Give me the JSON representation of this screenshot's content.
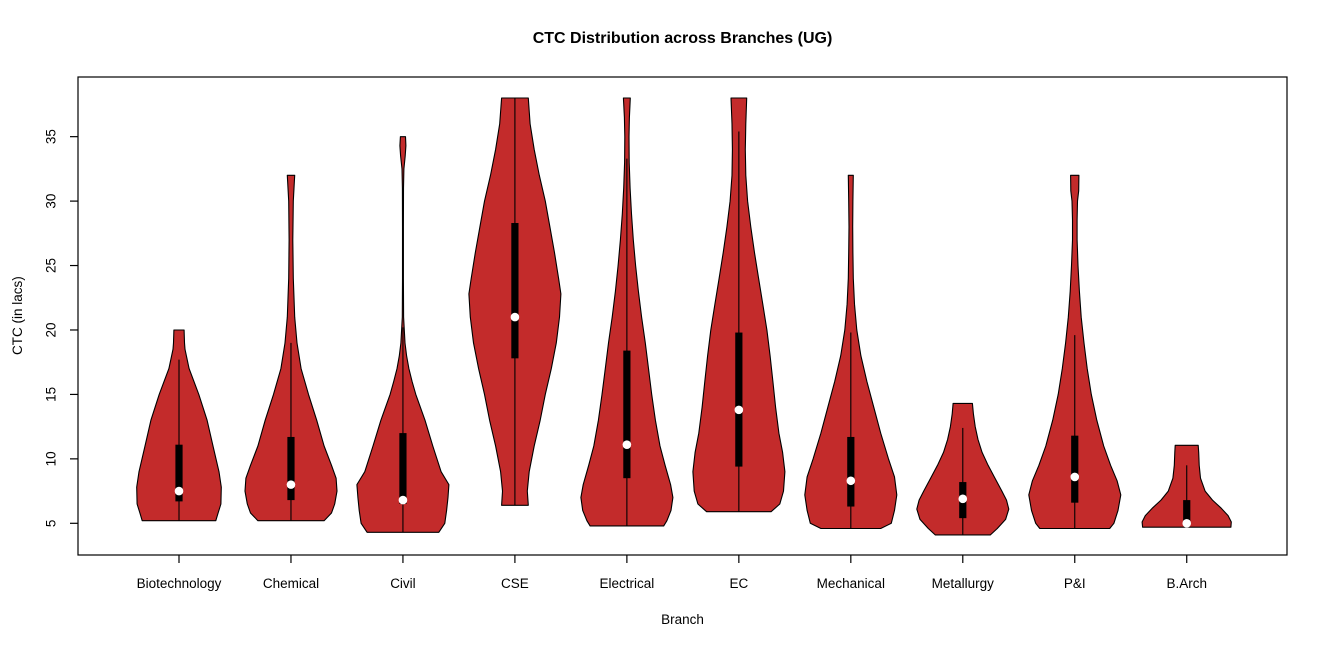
{
  "chart_data": {
    "type": "violin",
    "title": "CTC Distribution across Branches (UG)",
    "xlabel": "Branch",
    "ylabel": "CTC (in lacs)",
    "y_ticks": [
      5,
      10,
      15,
      20,
      25,
      30,
      35
    ],
    "ylim": [
      2.5,
      39.6
    ],
    "grid": false,
    "legend": "none",
    "colors": {
      "violin_fill": "#C32B2B",
      "violin_outline": "#000000",
      "box": "#000000",
      "median_dot": "#FFFFFF",
      "axis": "#000000"
    },
    "categories": [
      "Biotechnology",
      "Chemical",
      "Civil",
      "CSE",
      "Electrical",
      "EC",
      "Mechanical",
      "Metallurgy",
      "P&I",
      "B.Arch"
    ],
    "series": [
      {
        "label": "Biotechnology",
        "min": 5.2,
        "max": 20,
        "q1": 6.7,
        "q3": 11.1,
        "median": 7.5,
        "whisker_low": 5.2,
        "whisker_high": 17.7,
        "profile": [
          [
            20,
            0.11
          ],
          [
            19,
            0.12
          ],
          [
            18.5,
            0.13
          ],
          [
            17,
            0.22
          ],
          [
            15,
            0.43
          ],
          [
            13,
            0.61
          ],
          [
            11,
            0.74
          ],
          [
            9,
            0.87
          ],
          [
            7.8,
            0.92
          ],
          [
            6.5,
            0.91
          ],
          [
            5.8,
            0.85
          ],
          [
            5.2,
            0.8
          ]
        ]
      },
      {
        "label": "Chemical",
        "min": 5.2,
        "max": 32,
        "q1": 6.8,
        "q3": 11.7,
        "median": 8.0,
        "whisker_low": 5.2,
        "whisker_high": 19.0,
        "profile": [
          [
            32,
            0.08
          ],
          [
            30,
            0.05
          ],
          [
            27,
            0.04
          ],
          [
            24,
            0.05
          ],
          [
            21,
            0.08
          ],
          [
            19,
            0.13
          ],
          [
            17,
            0.22
          ],
          [
            15,
            0.38
          ],
          [
            13,
            0.56
          ],
          [
            11,
            0.72
          ],
          [
            9.5,
            0.88
          ],
          [
            8.5,
            0.98
          ],
          [
            7.5,
            1.0
          ],
          [
            6.5,
            0.95
          ],
          [
            5.8,
            0.88
          ],
          [
            5.2,
            0.72
          ]
        ]
      },
      {
        "label": "Civil",
        "min": 4.3,
        "max": 35,
        "q1": 6.5,
        "q3": 12.0,
        "median": 6.8,
        "whisker_low": 4.3,
        "whisker_high": 20.2,
        "profile": [
          [
            35,
            0.055
          ],
          [
            34.3,
            0.065
          ],
          [
            33.5,
            0.05
          ],
          [
            32.5,
            0.02
          ],
          [
            31,
            0.012
          ],
          [
            28,
            0.01
          ],
          [
            24,
            0.01
          ],
          [
            21,
            0.015
          ],
          [
            19,
            0.045
          ],
          [
            18,
            0.08
          ],
          [
            17,
            0.13
          ],
          [
            16,
            0.2
          ],
          [
            15,
            0.28
          ],
          [
            13,
            0.48
          ],
          [
            11,
            0.65
          ],
          [
            9,
            0.83
          ],
          [
            8,
            1.0
          ],
          [
            7,
            0.98
          ],
          [
            6,
            0.95
          ],
          [
            5,
            0.91
          ],
          [
            4.3,
            0.78
          ]
        ]
      },
      {
        "label": "CSE",
        "min": 6.4,
        "max": 38,
        "q1": 17.8,
        "q3": 28.3,
        "median": 21.0,
        "whisker_low": 6.4,
        "whisker_high": 38,
        "profile": [
          [
            38,
            0.29
          ],
          [
            36,
            0.33
          ],
          [
            34,
            0.42
          ],
          [
            32,
            0.53
          ],
          [
            30,
            0.66
          ],
          [
            28,
            0.76
          ],
          [
            26,
            0.86
          ],
          [
            24,
            0.95
          ],
          [
            22.8,
            1.0
          ],
          [
            21,
            0.97
          ],
          [
            19,
            0.9
          ],
          [
            17,
            0.79
          ],
          [
            15,
            0.66
          ],
          [
            13,
            0.55
          ],
          [
            11,
            0.42
          ],
          [
            9,
            0.31
          ],
          [
            7.5,
            0.27
          ],
          [
            6.4,
            0.29
          ]
        ]
      },
      {
        "label": "Electrical",
        "min": 4.8,
        "max": 38,
        "q1": 8.5,
        "q3": 18.4,
        "median": 11.1,
        "whisker_low": 4.8,
        "whisker_high": 33.3,
        "profile": [
          [
            38,
            0.075
          ],
          [
            36.5,
            0.055
          ],
          [
            35,
            0.045
          ],
          [
            33,
            0.05
          ],
          [
            31,
            0.07
          ],
          [
            29,
            0.1
          ],
          [
            27,
            0.14
          ],
          [
            25,
            0.19
          ],
          [
            23,
            0.25
          ],
          [
            21,
            0.32
          ],
          [
            19,
            0.4
          ],
          [
            17,
            0.47
          ],
          [
            15,
            0.54
          ],
          [
            13,
            0.62
          ],
          [
            11,
            0.72
          ],
          [
            9.5,
            0.83
          ],
          [
            8,
            0.95
          ],
          [
            7,
            1.0
          ],
          [
            6,
            0.96
          ],
          [
            5.2,
            0.87
          ],
          [
            4.8,
            0.8
          ]
        ]
      },
      {
        "label": "EC",
        "min": 5.9,
        "max": 38,
        "q1": 9.4,
        "q3": 19.8,
        "median": 13.8,
        "whisker_low": 5.9,
        "whisker_high": 35.4,
        "profile": [
          [
            38,
            0.17
          ],
          [
            36,
            0.15
          ],
          [
            34,
            0.14
          ],
          [
            32,
            0.15
          ],
          [
            30,
            0.19
          ],
          [
            28,
            0.26
          ],
          [
            26,
            0.34
          ],
          [
            24,
            0.43
          ],
          [
            22,
            0.52
          ],
          [
            20,
            0.61
          ],
          [
            18,
            0.68
          ],
          [
            16,
            0.74
          ],
          [
            14,
            0.8
          ],
          [
            12,
            0.87
          ],
          [
            10.5,
            0.95
          ],
          [
            9,
            1.0
          ],
          [
            7.5,
            0.97
          ],
          [
            6.5,
            0.89
          ],
          [
            5.9,
            0.7
          ]
        ]
      },
      {
        "label": "Mechanical",
        "min": 4.6,
        "max": 32,
        "q1": 6.3,
        "q3": 11.7,
        "median": 8.3,
        "whisker_low": 4.6,
        "whisker_high": 19.8,
        "profile": [
          [
            32,
            0.055
          ],
          [
            30,
            0.045
          ],
          [
            28,
            0.04
          ],
          [
            26,
            0.045
          ],
          [
            24,
            0.055
          ],
          [
            22,
            0.08
          ],
          [
            20,
            0.13
          ],
          [
            18,
            0.22
          ],
          [
            16,
            0.35
          ],
          [
            14,
            0.5
          ],
          [
            12,
            0.65
          ],
          [
            10,
            0.82
          ],
          [
            8.6,
            0.95
          ],
          [
            7.2,
            1.0
          ],
          [
            6,
            0.95
          ],
          [
            5,
            0.88
          ],
          [
            4.6,
            0.65
          ]
        ]
      },
      {
        "label": "Metallurgy",
        "min": 4.1,
        "max": 14.3,
        "q1": 5.4,
        "q3": 8.2,
        "median": 6.9,
        "whisker_low": 4.1,
        "whisker_high": 12.4,
        "profile": [
          [
            14.3,
            0.21
          ],
          [
            13.5,
            0.23
          ],
          [
            12.5,
            0.27
          ],
          [
            11.5,
            0.33
          ],
          [
            10.5,
            0.42
          ],
          [
            9.5,
            0.55
          ],
          [
            8.5,
            0.7
          ],
          [
            7.5,
            0.85
          ],
          [
            6.8,
            0.95
          ],
          [
            6.1,
            1.0
          ],
          [
            5.3,
            0.93
          ],
          [
            4.6,
            0.75
          ],
          [
            4.1,
            0.6
          ]
        ]
      },
      {
        "label": "P&I",
        "min": 4.6,
        "max": 32,
        "q1": 6.6,
        "q3": 11.8,
        "median": 8.6,
        "whisker_low": 4.6,
        "whisker_high": 19.6,
        "profile": [
          [
            32,
            0.09
          ],
          [
            30.8,
            0.085
          ],
          [
            30,
            0.06
          ],
          [
            28.5,
            0.05
          ],
          [
            27,
            0.05
          ],
          [
            25,
            0.07
          ],
          [
            23,
            0.1
          ],
          [
            21,
            0.14
          ],
          [
            19,
            0.2
          ],
          [
            17,
            0.27
          ],
          [
            15,
            0.36
          ],
          [
            13,
            0.48
          ],
          [
            11,
            0.63
          ],
          [
            9.5,
            0.78
          ],
          [
            8.3,
            0.92
          ],
          [
            7.2,
            1.0
          ],
          [
            6,
            0.94
          ],
          [
            5,
            0.85
          ],
          [
            4.6,
            0.76
          ]
        ]
      },
      {
        "label": "B.Arch",
        "min": 4.7,
        "max": 11.1,
        "q1": 5.0,
        "q3": 6.8,
        "median": 5.0,
        "whisker_low": 4.7,
        "whisker_high": 9.5,
        "profile": [
          [
            11.05,
            0.25
          ],
          [
            10.5,
            0.26
          ],
          [
            9.5,
            0.27
          ],
          [
            8.5,
            0.3
          ],
          [
            7.5,
            0.4
          ],
          [
            6.8,
            0.56
          ],
          [
            6.2,
            0.74
          ],
          [
            5.6,
            0.9
          ],
          [
            5.1,
            0.97
          ],
          [
            4.7,
            0.96
          ]
        ]
      }
    ]
  }
}
